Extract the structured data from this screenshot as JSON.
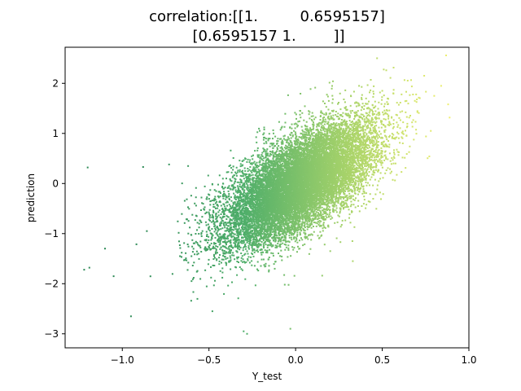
{
  "chart_data": {
    "type": "scatter",
    "title_lines": [
      "correlation:[[1.         0.6595157]",
      "[0.6595157 1.        ]]"
    ],
    "xlabel": "Y_test",
    "ylabel": "prediction",
    "xlim": [
      -1.33,
      1.0
    ],
    "ylim": [
      -3.28,
      2.72
    ],
    "x_ticks": [
      -1.0,
      -0.5,
      0.0,
      0.5,
      1.0
    ],
    "x_tick_labels": [
      "−1.0",
      "−0.5",
      "0.0",
      "0.5",
      "1.0"
    ],
    "y_ticks": [
      -3,
      -2,
      -1,
      0,
      1,
      2
    ],
    "y_tick_labels": [
      "−3",
      "−2",
      "−1",
      "0",
      "1",
      "2"
    ],
    "grid": false,
    "legend": "none",
    "correlation": 0.6595157,
    "x_center": 0.02,
    "x_std": 0.22,
    "y_center": 0.0,
    "y_std": 0.62,
    "colormap": [
      "#2e8b57",
      "#4fae6a",
      "#a8d36a",
      "#f0f06e"
    ],
    "outliers": [
      {
        "x": -1.22,
        "y": -1.72
      },
      {
        "x": -1.19,
        "y": -1.68
      },
      {
        "x": -1.2,
        "y": 0.32
      },
      {
        "x": -0.88,
        "y": 0.33
      },
      {
        "x": -0.95,
        "y": -2.65
      },
      {
        "x": -1.1,
        "y": -1.3
      },
      {
        "x": -1.05,
        "y": -1.85
      },
      {
        "x": -0.03,
        "y": -2.9
      },
      {
        "x": -0.28,
        "y": -3.0
      },
      {
        "x": -0.3,
        "y": -2.95
      },
      {
        "x": 0.47,
        "y": 2.5
      },
      {
        "x": 0.84,
        "y": 1.95
      },
      {
        "x": 0.88,
        "y": 1.58
      },
      {
        "x": -0.48,
        "y": -2.55
      },
      {
        "x": -0.73,
        "y": 0.38
      },
      {
        "x": -0.62,
        "y": 0.35
      },
      {
        "x": 0.8,
        "y": 1.75
      },
      {
        "x": 0.2,
        "y": -1.35
      },
      {
        "x": 0.33,
        "y": -1.55
      },
      {
        "x": 0.78,
        "y": 1.05
      }
    ]
  }
}
